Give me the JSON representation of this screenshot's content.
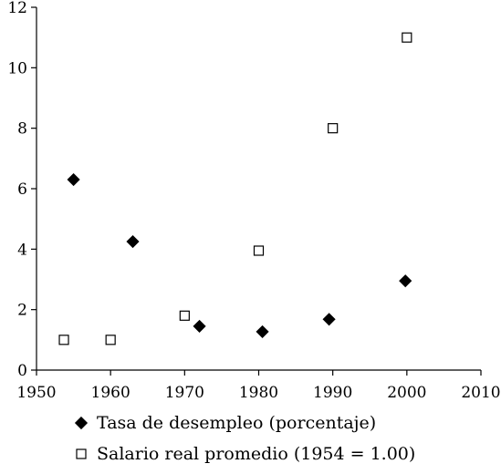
{
  "chart_data": {
    "type": "scatter",
    "title": "",
    "xlabel": "",
    "ylabel": "",
    "xlim": [
      1950,
      2010
    ],
    "ylim": [
      0,
      12
    ],
    "x_ticks": [
      1950,
      1960,
      1970,
      1980,
      1990,
      2000,
      2010
    ],
    "y_ticks": [
      0,
      2,
      4,
      6,
      8,
      10,
      12
    ],
    "x_tick_labels": [
      "1950",
      "1960",
      "1970",
      "1980",
      "1990",
      "2000",
      "2010"
    ],
    "y_tick_labels": [
      "0",
      "2",
      "4",
      "6",
      "8",
      "10",
      "12"
    ],
    "grid": false,
    "legend_position": "bottom",
    "series": [
      {
        "name": "Tasa de desempleo (porcentaje)",
        "marker": "filled-diamond",
        "color": "#000000",
        "points": [
          {
            "x": 1955,
            "y": 6.3
          },
          {
            "x": 1963,
            "y": 4.25
          },
          {
            "x": 1972,
            "y": 1.45
          },
          {
            "x": 1980.5,
            "y": 1.27
          },
          {
            "x": 1989.5,
            "y": 1.68
          },
          {
            "x": 1999.8,
            "y": 2.95
          }
        ]
      },
      {
        "name": "Salario real promedio (1954 = 1.00)",
        "marker": "open-square",
        "color": "#000000",
        "points": [
          {
            "x": 1953.7,
            "y": 1.0
          },
          {
            "x": 1960,
            "y": 1.0
          },
          {
            "x": 1970,
            "y": 1.8
          },
          {
            "x": 1980,
            "y": 3.95
          },
          {
            "x": 1990,
            "y": 8.0
          },
          {
            "x": 2000,
            "y": 11.0
          }
        ]
      }
    ]
  }
}
